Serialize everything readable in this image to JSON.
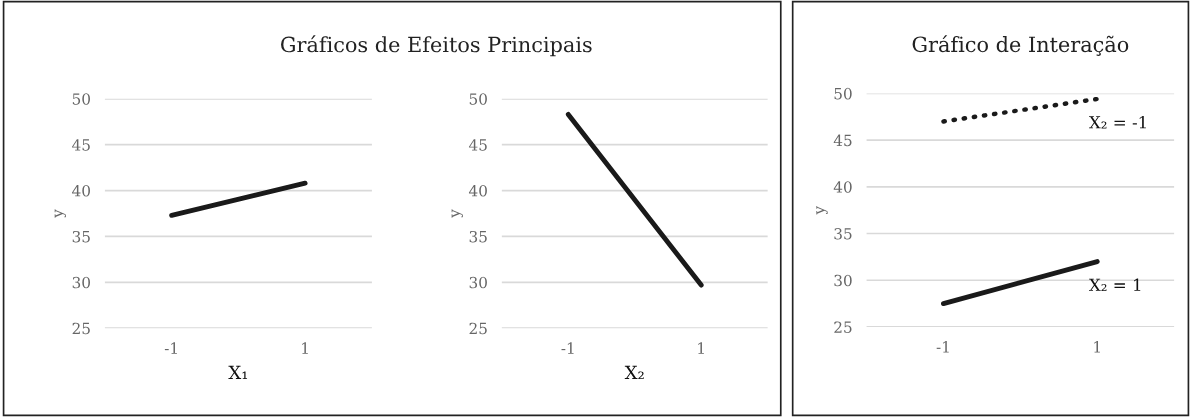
{
  "chart_data": [
    {
      "type": "line",
      "title": "Gráficos de Efeitos Principais",
      "xlabel": "X₁",
      "ylabel": "y",
      "categories": [
        "-1",
        "1"
      ],
      "series": [
        {
          "color": "#1a1a1a",
          "values": [
            37.3,
            40.8
          ]
        }
      ],
      "ylim": [
        25,
        50
      ],
      "yticks": [
        25,
        30,
        35,
        40,
        45,
        50
      ],
      "grid": "y",
      "legend": false
    },
    {
      "type": "line",
      "xlabel": "X₂",
      "ylabel": "y",
      "categories": [
        "-1",
        "1"
      ],
      "series": [
        {
          "color": "#1a1a1a",
          "values": [
            48.3,
            29.7
          ]
        }
      ],
      "ylim": [
        25,
        50
      ],
      "yticks": [
        25,
        30,
        35,
        40,
        45,
        50
      ],
      "grid": "y",
      "legend": false
    },
    {
      "type": "line",
      "title": "Gráfico de Interação",
      "ylabel": "y",
      "categories": [
        "-1",
        "1"
      ],
      "series": [
        {
          "name": "X₂ = -1",
          "color": "#1a1a1a",
          "line_style": "dotted",
          "values": [
            47.0,
            49.4
          ]
        },
        {
          "name": "X₂ = 1",
          "color": "#1a1a1a",
          "line_style": "solid",
          "values": [
            27.5,
            32.0
          ]
        }
      ],
      "ylim": [
        25,
        50
      ],
      "yticks": [
        25,
        30,
        35,
        40,
        45,
        50
      ],
      "grid": "y",
      "legend": false
    }
  ]
}
